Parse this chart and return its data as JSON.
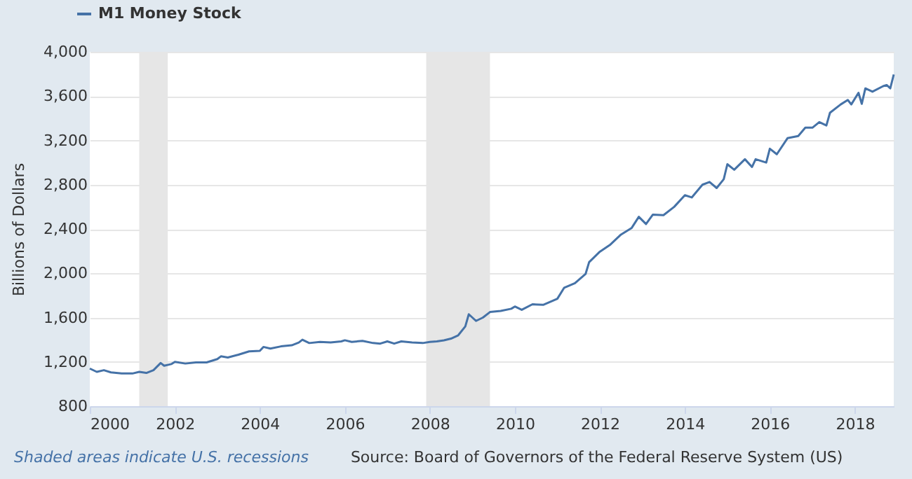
{
  "chart_data": {
    "type": "line",
    "ylabel": "Billions of Dollars",
    "annotations": [
      "Shaded areas indicate U.S. recessions",
      "Source: Board of Governors of the Federal Reserve System (US)"
    ],
    "x": [
      "2000-01",
      "2000-03",
      "2000-05",
      "2000-07",
      "2000-10",
      "2001-01",
      "2001-03",
      "2001-05",
      "2001-07",
      "2001-09",
      "2001-10",
      "2001-12",
      "2002-01",
      "2002-04",
      "2002-07",
      "2002-10",
      "2003-01",
      "2003-02",
      "2003-04",
      "2003-07",
      "2003-10",
      "2004-01",
      "2004-02",
      "2004-04",
      "2004-07",
      "2004-10",
      "2004-12",
      "2005-01",
      "2005-03",
      "2005-06",
      "2005-09",
      "2005-12",
      "2006-01",
      "2006-03",
      "2006-06",
      "2006-09",
      "2006-11",
      "2007-01",
      "2007-03",
      "2007-05",
      "2007-08",
      "2007-11",
      "2008-01",
      "2008-03",
      "2008-05",
      "2008-07",
      "2008-09",
      "2008-11",
      "2008-12",
      "2009-02",
      "2009-04",
      "2009-06",
      "2009-09",
      "2009-12",
      "2010-01",
      "2010-03",
      "2010-06",
      "2010-09",
      "2011-01",
      "2011-03",
      "2011-06",
      "2011-09",
      "2011-10",
      "2012-01",
      "2012-04",
      "2012-07",
      "2012-10",
      "2012-12",
      "2013-02",
      "2013-04",
      "2013-07",
      "2013-10",
      "2014-01",
      "2014-03",
      "2014-06",
      "2014-08",
      "2014-10",
      "2014-12",
      "2015-01",
      "2015-03",
      "2015-06",
      "2015-08",
      "2015-09",
      "2015-12",
      "2016-01",
      "2016-03",
      "2016-06",
      "2016-09",
      "2016-11",
      "2017-01",
      "2017-03",
      "2017-05",
      "2017-06",
      "2017-09",
      "2017-11",
      "2017-12",
      "2018-02",
      "2018-03",
      "2018-04",
      "2018-06",
      "2018-09",
      "2018-10",
      "2018-11",
      "2018-12"
    ],
    "series": [
      {
        "name": "M1 Money Stock",
        "color": "#4572a7",
        "values": [
          1140,
          1110,
          1125,
          1105,
          1095,
          1095,
          1110,
          1100,
          1125,
          1190,
          1165,
          1180,
          1200,
          1185,
          1195,
          1195,
          1225,
          1250,
          1240,
          1265,
          1295,
          1300,
          1335,
          1320,
          1340,
          1350,
          1375,
          1400,
          1370,
          1380,
          1375,
          1385,
          1395,
          1380,
          1390,
          1370,
          1365,
          1385,
          1365,
          1385,
          1375,
          1370,
          1380,
          1385,
          1395,
          1410,
          1440,
          1520,
          1630,
          1570,
          1600,
          1650,
          1660,
          1680,
          1700,
          1670,
          1720,
          1715,
          1770,
          1870,
          1910,
          1995,
          2100,
          2195,
          2260,
          2350,
          2410,
          2510,
          2445,
          2530,
          2525,
          2600,
          2705,
          2685,
          2800,
          2825,
          2770,
          2850,
          2985,
          2935,
          3030,
          2960,
          3030,
          3000,
          3125,
          3075,
          3220,
          3240,
          3315,
          3315,
          3365,
          3335,
          3450,
          3525,
          3565,
          3525,
          3630,
          3530,
          3670,
          3640,
          3690,
          3700,
          3670,
          3795
        ]
      }
    ],
    "xlim": [
      "2000-01",
      "2018-12"
    ],
    "xticks": [
      "2000",
      "2002",
      "2004",
      "2006",
      "2008",
      "2010",
      "2012",
      "2014",
      "2016",
      "2018"
    ],
    "ylim": [
      800,
      4000
    ],
    "yticks": [
      {
        "value": 800,
        "label": "800"
      },
      {
        "value": 1200,
        "label": "1,200"
      },
      {
        "value": 1600,
        "label": "1,600"
      },
      {
        "value": 2000,
        "label": "2,000"
      },
      {
        "value": 2400,
        "label": "2,400"
      },
      {
        "value": 2800,
        "label": "2,800"
      },
      {
        "value": 3200,
        "label": "3,200"
      },
      {
        "value": 3600,
        "label": "3,600"
      },
      {
        "value": 4000,
        "label": "4,000"
      }
    ],
    "bands": [
      {
        "axis": "x",
        "from": "2001-03",
        "to": "2001-11",
        "color": "#e6e6e6"
      },
      {
        "axis": "x",
        "from": "2007-12",
        "to": "2009-06",
        "color": "#e6e6e6"
      }
    ],
    "grid": "y",
    "legend": "top left",
    "line_style": "solid"
  }
}
